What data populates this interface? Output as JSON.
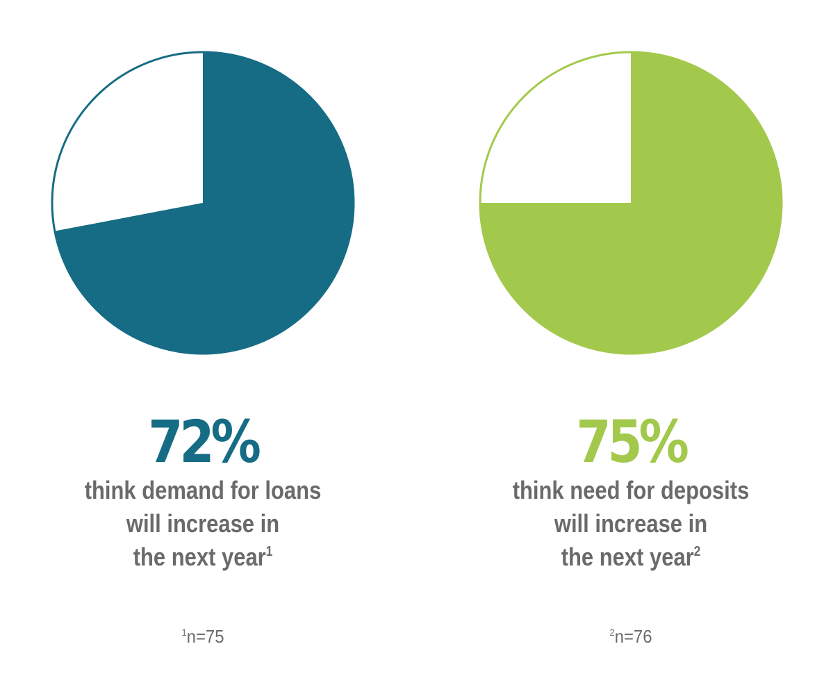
{
  "chart_data": [
    {
      "type": "pie",
      "values": [
        72,
        28
      ],
      "color": "#166c84",
      "percent_label": "72%",
      "description_lines": [
        "think demand for loans",
        "will increase in",
        "the next year"
      ],
      "footnote_ref": "1",
      "note_ref": "1",
      "note_text": "n=75"
    },
    {
      "type": "pie",
      "values": [
        75,
        25
      ],
      "color": "#a3c94c",
      "percent_label": "75%",
      "description_lines": [
        "think need for deposits",
        "will increase in",
        "the next year"
      ],
      "footnote_ref": "2",
      "note_ref": "2",
      "note_text": "n=76"
    }
  ]
}
